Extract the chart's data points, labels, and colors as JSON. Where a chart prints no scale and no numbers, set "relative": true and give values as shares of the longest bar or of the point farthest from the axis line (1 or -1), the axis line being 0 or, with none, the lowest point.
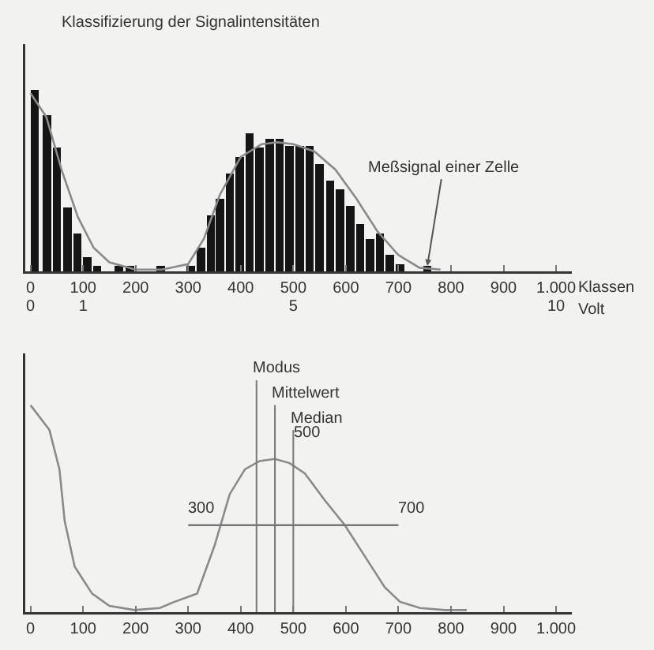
{
  "chart_data": [
    {
      "type": "bar",
      "title": "Klassifizierung der Signalintensitäten",
      "xlabel": "Klassen",
      "x2label": "Volt",
      "relative": true,
      "tick_labels": "x",
      "xlim": [
        -10,
        1030
      ],
      "xticks": [
        0,
        100,
        200,
        300,
        400,
        500,
        600,
        700,
        800,
        900,
        {
          "value": 1000,
          "label": "1.000"
        }
      ],
      "x2lim": [
        -0.1,
        10.3
      ],
      "x2ticks": [
        0,
        1,
        5,
        10
      ],
      "series": [
        {
          "type": "bar",
          "color": "#151515",
          "x": [
            8,
            31,
            50,
            70,
            89,
            108,
            127,
            168,
            189,
            248,
            305,
            324,
            343,
            360,
            379,
            398,
            417,
            436,
            455,
            474,
            493,
            512,
            531,
            550,
            570,
            589,
            608,
            627,
            646,
            665,
            684,
            703,
            755
          ],
          "values": [
            1,
            0.86,
            0.68,
            0.35,
            0.21,
            0.08,
            0.03,
            0.03,
            0.03,
            0.03,
            0.03,
            0.13,
            0.31,
            0.4,
            0.54,
            0.63,
            0.76,
            0.68,
            0.73,
            0.73,
            0.69,
            0.69,
            0.69,
            0.59,
            0.5,
            0.45,
            0.36,
            0.26,
            0.18,
            0.21,
            0.09,
            0.04,
            0.03
          ]
        },
        {
          "type": "line",
          "color": "#8a8a8a",
          "x": [
            0,
            30,
            60,
            90,
            120,
            150,
            200,
            250,
            300,
            330,
            360,
            400,
            440,
            470,
            500,
            540,
            580,
            620,
            660,
            700,
            740,
            780
          ],
          "values": [
            0.98,
            0.85,
            0.55,
            0.3,
            0.13,
            0.05,
            0.01,
            0.01,
            0.04,
            0.18,
            0.42,
            0.63,
            0.7,
            0.71,
            0.7,
            0.66,
            0.56,
            0.4,
            0.22,
            0.09,
            0.02,
            0.01
          ]
        }
      ],
      "annotations": [
        {
          "text": "Meßsignal einer Zelle",
          "x": 755,
          "y": 0.03
        }
      ]
    },
    {
      "type": "line",
      "relative": true,
      "tick_labels": "x",
      "xlim": [
        -10,
        1030
      ],
      "xticks": [
        0,
        100,
        200,
        300,
        400,
        500,
        600,
        700,
        800,
        900,
        {
          "value": 1000,
          "label": "1.000"
        }
      ],
      "series": [
        {
          "color": "#8a8a8a",
          "x": [
            0,
            36,
            55,
            65,
            84,
            117,
            150,
            198,
            246,
            274,
            317,
            350,
            379,
            408,
            436,
            465,
            493,
            522,
            560,
            598,
            636,
            674,
            703,
            741,
            789,
            830
          ],
          "values": [
            1,
            0.88,
            0.69,
            0.44,
            0.22,
            0.09,
            0.03,
            0.01,
            0.02,
            0.05,
            0.09,
            0.32,
            0.57,
            0.69,
            0.73,
            0.74,
            0.72,
            0.67,
            0.54,
            0.42,
            0.27,
            0.12,
            0.05,
            0.02,
            0.01,
            0.01
          ]
        },
        {
          "color": "#777777",
          "x": [
            300,
            700
          ],
          "values": [
            0.42,
            0.42
          ]
        }
      ],
      "ref_lines": [
        {
          "axis": "x",
          "value": 430,
          "label": "Modus",
          "color": "#777777"
        },
        {
          "axis": "x",
          "value": 465,
          "label": "Mittelwert",
          "color": "#777777"
        },
        {
          "axis": "x",
          "value": 500,
          "label": "Median",
          "color": "#777777"
        }
      ],
      "annotations": [
        {
          "text": "500",
          "x": 500,
          "y": 0.79
        },
        {
          "text": "300",
          "x": 300,
          "y": 0.42
        },
        {
          "text": "700",
          "x": 700,
          "y": 0.42
        }
      ]
    }
  ]
}
